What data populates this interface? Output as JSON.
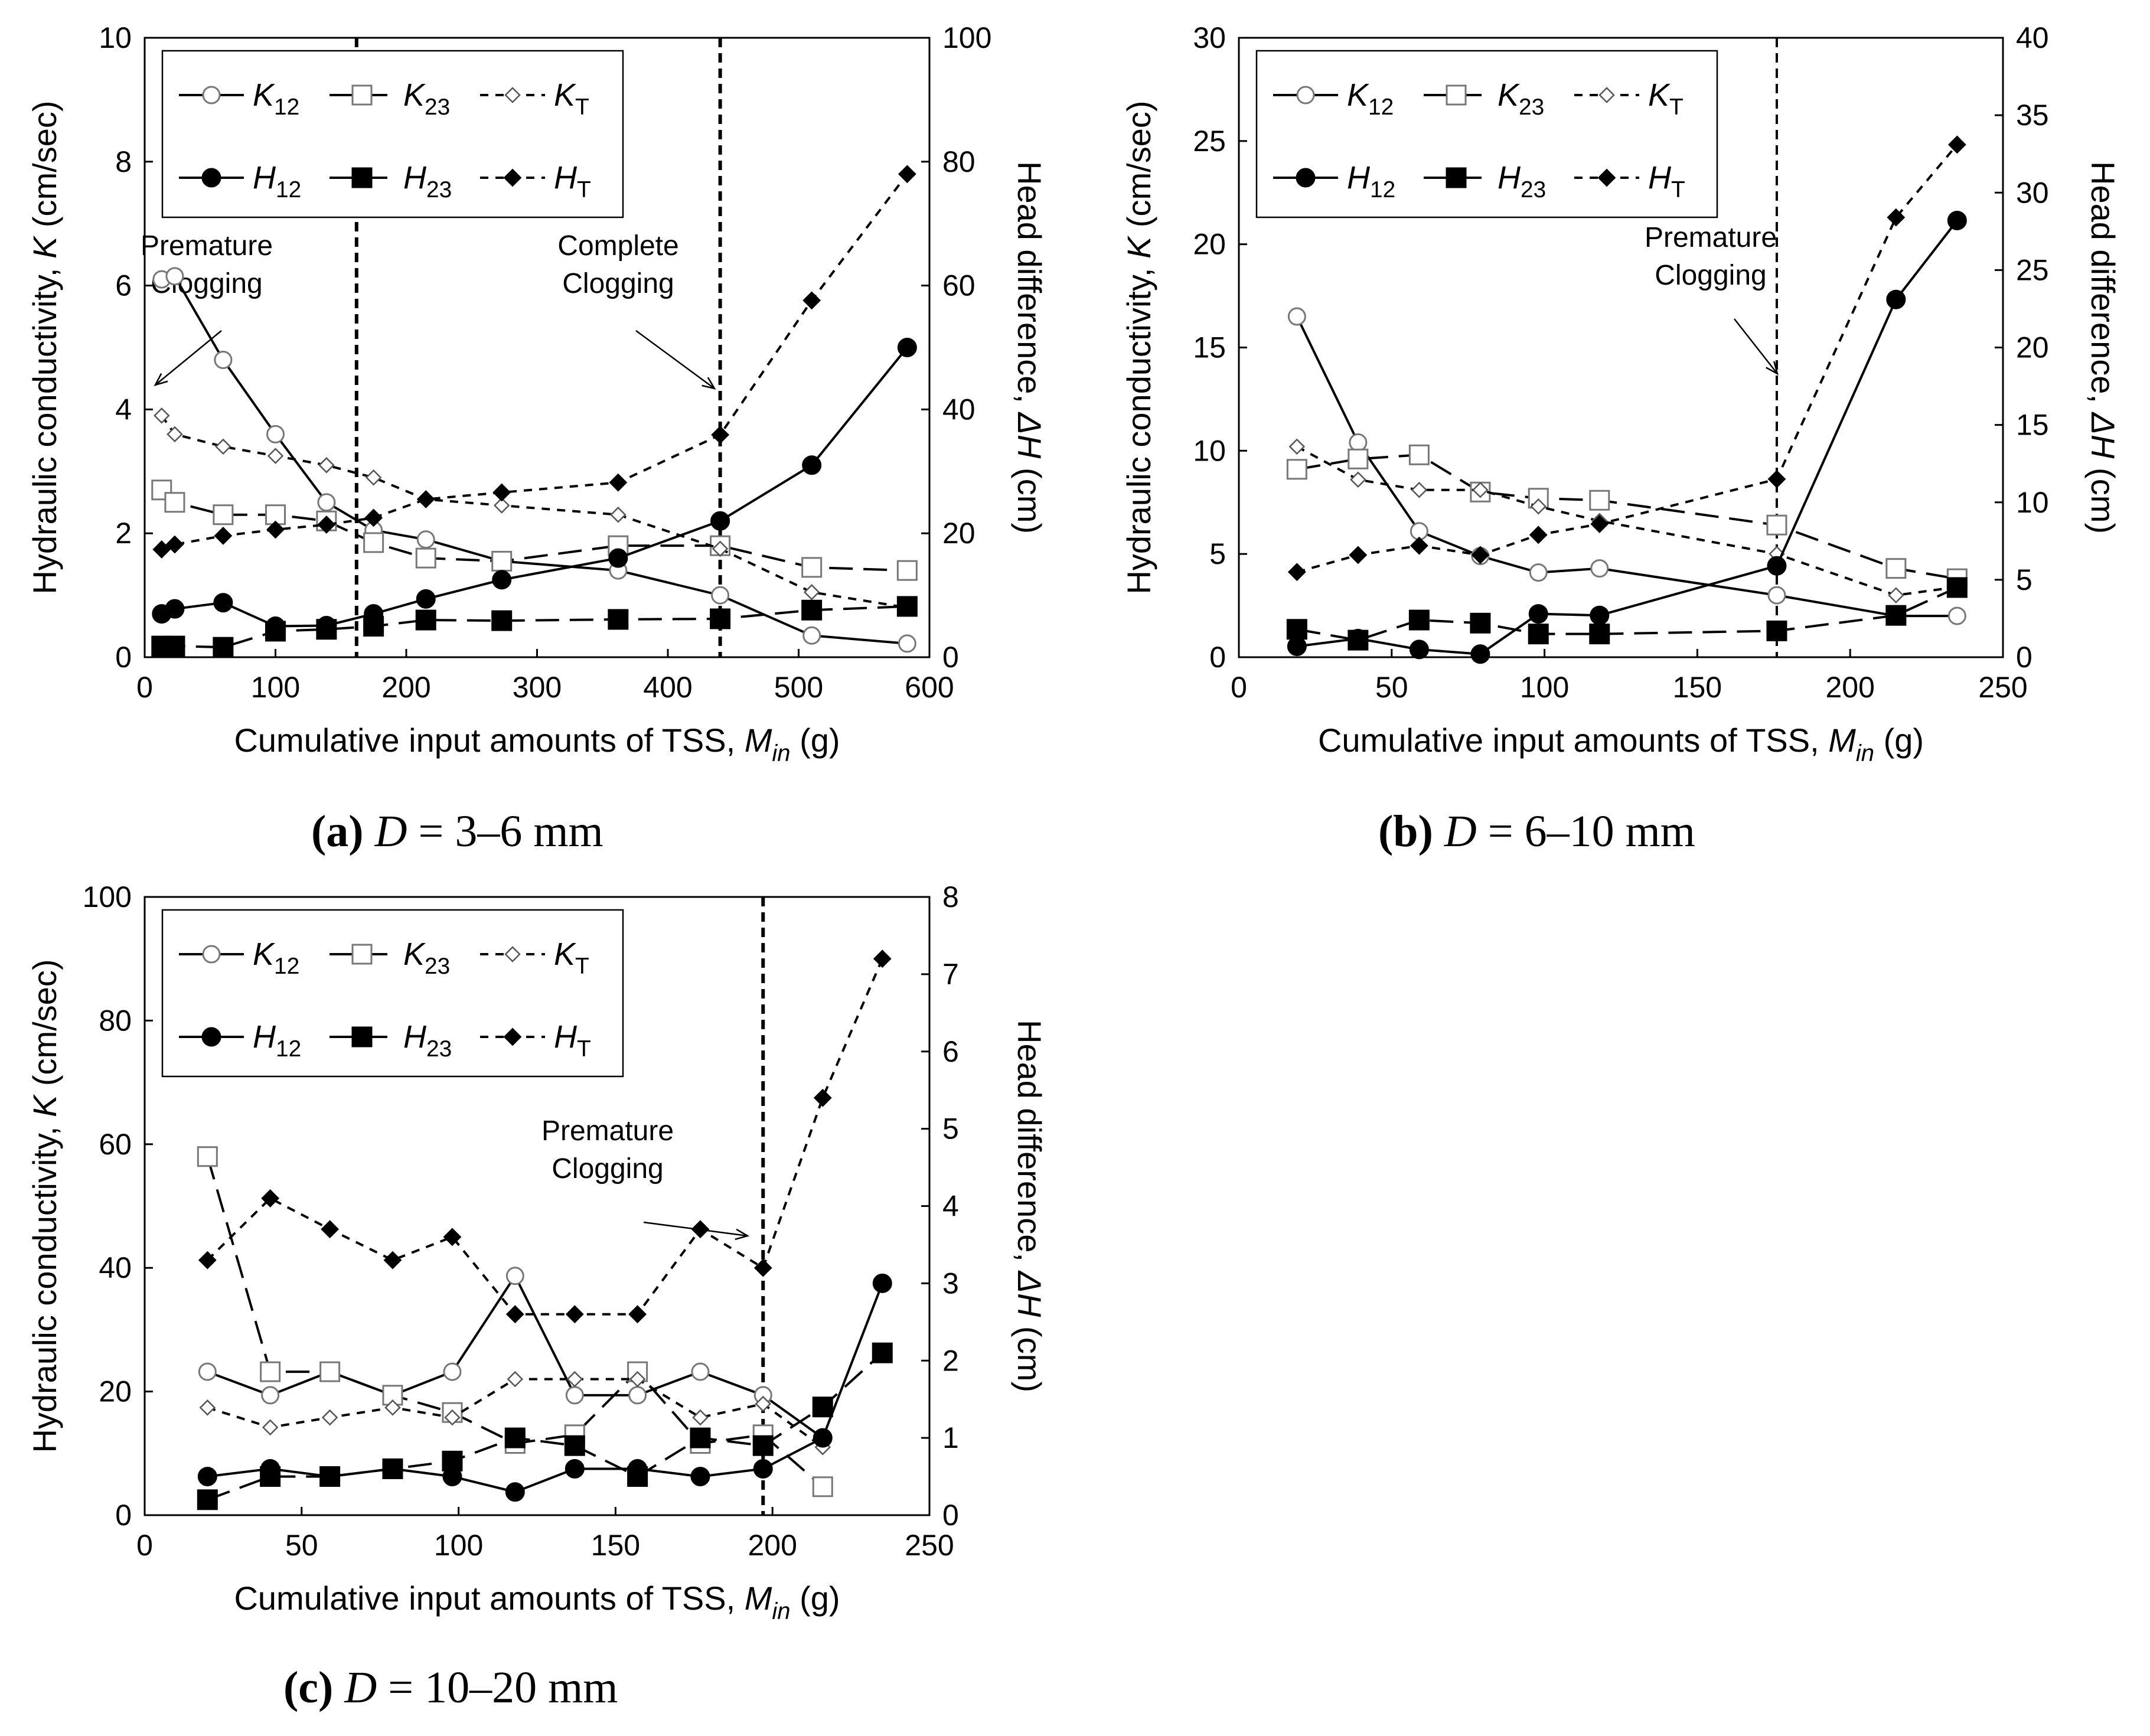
{
  "figure": {
    "panels": [
      {
        "caption_tag": "(a)",
        "caption_symbol": "D",
        "caption_eq": " = ",
        "caption_range": "3–6 mm"
      },
      {
        "caption_tag": "(b)",
        "caption_symbol": "D",
        "caption_eq": " = ",
        "caption_range": "6–10 mm"
      },
      {
        "caption_tag": "(c)",
        "caption_symbol": "D",
        "caption_eq": " = ",
        "caption_range": "10–20 mm"
      }
    ]
  },
  "chart_data": [
    {
      "type": "line",
      "panel": "a",
      "xlabel": "Cumulative input amounts of TSS, M_in (g)",
      "ylabel": "Hydraulic conductivity, K (cm/sec)",
      "y2label": "Head difference, ΔH (cm)",
      "xlim": [
        0,
        600
      ],
      "xticks": [
        0,
        100,
        200,
        300,
        400,
        500,
        600
      ],
      "ylim": [
        0,
        10
      ],
      "yticks": [
        0,
        2,
        4,
        6,
        8,
        10
      ],
      "y2lim": [
        0,
        100
      ],
      "y2ticks": [
        0,
        20,
        40,
        60,
        80,
        100
      ],
      "legend": "top-left",
      "vlines": [
        {
          "x": 162,
          "label_line1": "Premature",
          "label_line2": "Clogging"
        },
        {
          "x": 440,
          "label_line1": "Complete",
          "label_line2": "Clogging"
        }
      ],
      "series": [
        {
          "name": "K12",
          "axis": "left",
          "marker": "circle-open",
          "dash": "solid",
          "x": [
            13,
            23,
            60,
            100,
            139,
            175,
            215,
            273,
            362,
            440,
            510,
            583
          ],
          "y": [
            6.1,
            6.15,
            4.8,
            3.6,
            2.5,
            2.05,
            1.9,
            1.55,
            1.4,
            1.0,
            0.35,
            0.22
          ]
        },
        {
          "name": "K23",
          "axis": "left",
          "marker": "square-open",
          "dash": "long",
          "x": [
            13,
            23,
            60,
            100,
            139,
            175,
            215,
            273,
            362,
            440,
            510,
            583
          ],
          "y": [
            2.7,
            2.5,
            2.3,
            2.3,
            2.2,
            1.85,
            1.6,
            1.55,
            1.8,
            1.8,
            1.45,
            1.4
          ]
        },
        {
          "name": "KT",
          "axis": "left",
          "marker": "diamond-open",
          "dash": "short",
          "x": [
            13,
            23,
            60,
            100,
            139,
            175,
            215,
            273,
            362,
            440,
            510,
            583
          ],
          "y": [
            3.9,
            3.6,
            3.4,
            3.25,
            3.1,
            2.9,
            2.55,
            2.45,
            2.3,
            1.75,
            1.05,
            0.8
          ]
        },
        {
          "name": "H12",
          "axis": "right",
          "marker": "circle-filled",
          "dash": "solid",
          "x": [
            13,
            23,
            60,
            100,
            139,
            175,
            215,
            273,
            362,
            440,
            510,
            583
          ],
          "y": [
            7,
            7.8,
            8.8,
            5,
            5.1,
            7,
            9.4,
            12.5,
            16,
            22,
            31,
            50
          ]
        },
        {
          "name": "H23",
          "axis": "right",
          "marker": "square-filled",
          "dash": "long",
          "x": [
            13,
            23,
            60,
            100,
            139,
            175,
            215,
            273,
            362,
            440,
            510,
            583
          ],
          "y": [
            1.8,
            1.8,
            1.6,
            4.2,
            4.5,
            5,
            6,
            5.9,
            6.1,
            6.2,
            7.6,
            8.2
          ]
        },
        {
          "name": "HT",
          "axis": "right",
          "marker": "diamond-filled",
          "dash": "short",
          "x": [
            13,
            23,
            60,
            100,
            139,
            175,
            215,
            273,
            362,
            440,
            510,
            583
          ],
          "y": [
            17.4,
            18.2,
            19.6,
            20.6,
            21.4,
            22.5,
            25.5,
            26.6,
            28.2,
            35.9,
            57.6,
            78
          ]
        }
      ]
    },
    {
      "type": "line",
      "panel": "b",
      "xlabel": "Cumulative input amounts of TSS, M_in (g)",
      "ylabel": "Hydraulic conductivity, K (cm/sec)",
      "y2label": "Head difference, ΔH (cm)",
      "xlim": [
        0,
        250
      ],
      "xticks": [
        0,
        50,
        100,
        150,
        200,
        250
      ],
      "ylim": [
        0,
        30
      ],
      "yticks": [
        0,
        5,
        10,
        15,
        20,
        25,
        30
      ],
      "y2lim": [
        0,
        40
      ],
      "y2ticks": [
        0,
        5,
        10,
        15,
        20,
        25,
        30,
        35,
        40
      ],
      "legend": "top-left",
      "vlines": [
        {
          "x": 176,
          "label_line1": "Premature",
          "label_line2": "Clogging"
        }
      ],
      "series": [
        {
          "name": "K12",
          "axis": "left",
          "marker": "circle-open",
          "dash": "solid",
          "x": [
            19,
            39,
            59,
            79,
            98,
            118,
            176,
            215,
            235
          ],
          "y": [
            16.5,
            10.4,
            6.1,
            4.9,
            4.1,
            4.3,
            3.0,
            2.0,
            2.0
          ]
        },
        {
          "name": "K23",
          "axis": "left",
          "marker": "square-open",
          "dash": "long",
          "x": [
            19,
            39,
            59,
            79,
            98,
            118,
            176,
            215,
            235
          ],
          "y": [
            9.1,
            9.6,
            9.8,
            8.0,
            7.7,
            7.6,
            6.4,
            4.3,
            3.8
          ]
        },
        {
          "name": "KT",
          "axis": "left",
          "marker": "diamond-open",
          "dash": "short",
          "x": [
            19,
            39,
            59,
            79,
            98,
            118,
            176,
            215,
            235
          ],
          "y": [
            10.2,
            8.6,
            8.1,
            8.1,
            7.3,
            6.6,
            5.0,
            3.0,
            3.4
          ]
        },
        {
          "name": "H12",
          "axis": "right",
          "marker": "circle-filled",
          "dash": "solid",
          "x": [
            19,
            39,
            59,
            79,
            98,
            118,
            176,
            215,
            235
          ],
          "y": [
            0.7,
            1.2,
            0.5,
            0.2,
            2.8,
            2.7,
            5.9,
            23.1,
            28.2
          ]
        },
        {
          "name": "H23",
          "axis": "right",
          "marker": "square-filled",
          "dash": "long",
          "x": [
            19,
            39,
            59,
            79,
            98,
            118,
            176,
            215,
            235
          ],
          "y": [
            1.8,
            1.1,
            2.4,
            2.2,
            1.5,
            1.5,
            1.7,
            2.7,
            4.5
          ]
        },
        {
          "name": "HT",
          "axis": "right",
          "marker": "diamond-filled",
          "dash": "short",
          "x": [
            19,
            39,
            59,
            79,
            98,
            118,
            176,
            215,
            235
          ],
          "y": [
            5.5,
            6.6,
            7.2,
            6.6,
            7.9,
            8.6,
            11.5,
            28.4,
            33.1
          ]
        }
      ]
    },
    {
      "type": "line",
      "panel": "c",
      "xlabel": "Cumulative input amounts of TSS, M_in (g)",
      "ylabel": "Hydraulic conductivity, K (cm/sec)",
      "y2label": "Head difference, ΔH (cm)",
      "xlim": [
        0,
        250
      ],
      "xticks": [
        0,
        50,
        100,
        150,
        200,
        250
      ],
      "ylim": [
        0,
        100
      ],
      "yticks": [
        0,
        20,
        40,
        60,
        80,
        100
      ],
      "y2lim": [
        0,
        8
      ],
      "y2ticks": [
        0,
        1,
        2,
        3,
        4,
        5,
        6,
        7,
        8
      ],
      "legend": "top-left",
      "vlines": [
        {
          "x": 197,
          "label_line1": "Premature",
          "label_line2": "Clogging"
        }
      ],
      "series": [
        {
          "name": "K12",
          "axis": "left",
          "marker": "circle-open",
          "dash": "solid",
          "x": [
            20,
            40,
            59,
            79,
            98,
            118,
            137,
            157,
            177,
            197,
            216
          ],
          "y": [
            23.2,
            19.4,
            23.2,
            19.4,
            23.2,
            38.7,
            19.4,
            19.4,
            23.2,
            19.4,
            12.5
          ]
        },
        {
          "name": "K23",
          "axis": "left",
          "marker": "square-open",
          "dash": "long",
          "x": [
            20,
            40,
            59,
            79,
            98,
            118,
            137,
            157,
            177,
            197,
            216
          ],
          "y": [
            58.0,
            23.2,
            23.2,
            19.4,
            16.6,
            11.6,
            13.0,
            23.2,
            11.6,
            13.0,
            4.6
          ]
        },
        {
          "name": "KT",
          "axis": "left",
          "marker": "diamond-open",
          "dash": "short",
          "x": [
            20,
            40,
            59,
            79,
            98,
            118,
            137,
            157,
            177,
            197,
            216
          ],
          "y": [
            17.4,
            14.2,
            15.8,
            17.4,
            15.8,
            22.0,
            22.0,
            22.0,
            15.8,
            18.0,
            11.0
          ]
        },
        {
          "name": "H12",
          "axis": "right",
          "marker": "circle-filled",
          "dash": "solid",
          "x": [
            20,
            40,
            59,
            79,
            98,
            118,
            137,
            157,
            177,
            197,
            216,
            235
          ],
          "y": [
            0.5,
            0.6,
            0.5,
            0.6,
            0.5,
            0.3,
            0.6,
            0.6,
            0.5,
            0.6,
            1.0,
            3.0
          ]
        },
        {
          "name": "H23",
          "axis": "right",
          "marker": "square-filled",
          "dash": "long",
          "x": [
            20,
            40,
            59,
            79,
            98,
            118,
            137,
            157,
            177,
            197,
            216,
            235
          ],
          "y": [
            0.2,
            0.5,
            0.5,
            0.6,
            0.7,
            1.0,
            0.9,
            0.5,
            1.0,
            0.9,
            1.4,
            2.1
          ]
        },
        {
          "name": "HT",
          "axis": "right",
          "marker": "diamond-filled",
          "dash": "short",
          "x": [
            20,
            40,
            59,
            79,
            98,
            118,
            137,
            157,
            177,
            197,
            216,
            235
          ],
          "y": [
            3.3,
            4.1,
            3.7,
            3.3,
            3.6,
            2.6,
            2.6,
            2.6,
            3.7,
            3.2,
            5.4,
            7.2
          ]
        }
      ]
    }
  ]
}
